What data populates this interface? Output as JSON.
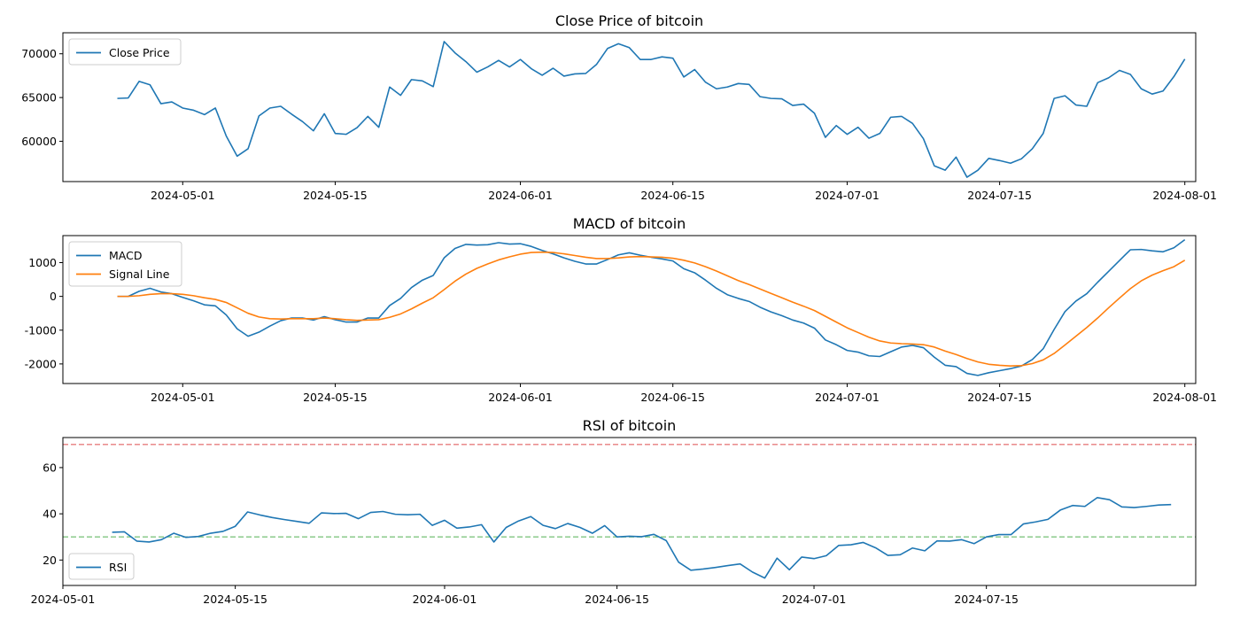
{
  "chart_data": [
    {
      "type": "line",
      "title": "Close Price of bitcoin",
      "xlabel": "",
      "ylabel": "",
      "x_start": "2024-04-25",
      "xlim": [
        "2024-04-20",
        "2024-08-02"
      ],
      "ylim": [
        55400,
        72400
      ],
      "x_ticks": [
        "2024-05-01",
        "2024-05-15",
        "2024-06-01",
        "2024-06-15",
        "2024-07-01",
        "2024-07-15",
        "2024-08-01"
      ],
      "y_ticks": [
        60000,
        65000,
        70000
      ],
      "grid": false,
      "legend": "upper left",
      "series": [
        {
          "name": "Close Price",
          "color": "#1f77b4",
          "values": [
            64900,
            64950,
            66850,
            66450,
            64300,
            64500,
            63800,
            63550,
            63050,
            63800,
            60600,
            58300,
            59150,
            62900,
            63800,
            64000,
            63100,
            62250,
            61200,
            63150,
            60900,
            60800,
            61550,
            62850,
            61600,
            66200,
            65250,
            67050,
            66900,
            66250,
            71400,
            70100,
            69100,
            67900,
            68500,
            69250,
            68500,
            69350,
            68300,
            67550,
            68350,
            67450,
            67700,
            67750,
            68800,
            70600,
            71150,
            70700,
            69350,
            69350,
            69650,
            69500,
            67350,
            68200,
            66750,
            66000,
            66200,
            66600,
            66500,
            65100,
            64900,
            64850,
            64100,
            64250,
            63200,
            60450,
            61800,
            60800,
            61600,
            60350,
            60900,
            62750,
            62850,
            62050,
            60300,
            57200,
            56700,
            58200,
            55900,
            56700,
            58050,
            57800,
            57500,
            58000,
            59150,
            60900,
            64900,
            65200,
            64150,
            64000,
            66700,
            67250,
            68100,
            67650,
            66000,
            65400,
            65750,
            67400,
            69400
          ]
        }
      ]
    },
    {
      "type": "line",
      "title": "MACD of bitcoin",
      "xlabel": "",
      "ylabel": "",
      "x_start": "2024-04-25",
      "xlim": [
        "2024-04-20",
        "2024-08-02"
      ],
      "ylim": [
        -2580,
        1800
      ],
      "x_ticks": [
        "2024-05-01",
        "2024-05-15",
        "2024-06-01",
        "2024-06-15",
        "2024-07-01",
        "2024-07-15",
        "2024-08-01"
      ],
      "y_ticks": [
        -2000,
        -1000,
        0,
        1000
      ],
      "grid": false,
      "legend": "upper left",
      "series": [
        {
          "name": "MACD",
          "color": "#1f77b4",
          "values": [
            0,
            0,
            150,
            240,
            130,
            80,
            -30,
            -130,
            -250,
            -280,
            -550,
            -960,
            -1180,
            -1060,
            -880,
            -720,
            -640,
            -640,
            -700,
            -600,
            -690,
            -760,
            -760,
            -640,
            -640,
            -270,
            -60,
            260,
            480,
            620,
            1140,
            1420,
            1540,
            1520,
            1530,
            1590,
            1550,
            1560,
            1480,
            1360,
            1260,
            1140,
            1040,
            960,
            960,
            1090,
            1230,
            1290,
            1220,
            1160,
            1110,
            1050,
            820,
            700,
            480,
            240,
            50,
            -60,
            -150,
            -320,
            -460,
            -570,
            -700,
            -790,
            -940,
            -1290,
            -1430,
            -1600,
            -1650,
            -1760,
            -1780,
            -1640,
            -1500,
            -1450,
            -1520,
            -1800,
            -2040,
            -2080,
            -2280,
            -2340,
            -2260,
            -2200,
            -2140,
            -2060,
            -1870,
            -1550,
            -980,
            -450,
            -140,
            80,
            420,
            740,
            1060,
            1380,
            1390,
            1350,
            1320,
            1440,
            1680
          ]
        },
        {
          "name": "Signal Line",
          "color": "#ff7f0e",
          "values": [
            0,
            0,
            20,
            60,
            80,
            80,
            60,
            20,
            -40,
            -90,
            -180,
            -340,
            -500,
            -610,
            -660,
            -670,
            -660,
            -660,
            -660,
            -640,
            -660,
            -690,
            -710,
            -700,
            -690,
            -620,
            -520,
            -370,
            -200,
            -40,
            200,
            450,
            660,
            830,
            960,
            1080,
            1170,
            1250,
            1300,
            1310,
            1300,
            1260,
            1210,
            1160,
            1120,
            1120,
            1140,
            1170,
            1180,
            1170,
            1160,
            1130,
            1070,
            990,
            880,
            750,
            610,
            470,
            350,
            220,
            90,
            -40,
            -170,
            -290,
            -420,
            -590,
            -760,
            -930,
            -1070,
            -1210,
            -1320,
            -1380,
            -1400,
            -1410,
            -1430,
            -1500,
            -1620,
            -1720,
            -1840,
            -1940,
            -2010,
            -2040,
            -2060,
            -2050,
            -1990,
            -1880,
            -1690,
            -1440,
            -1180,
            -920,
            -640,
            -340,
            -50,
            230,
            460,
            630,
            760,
            880,
            1070
          ]
        }
      ]
    },
    {
      "type": "line",
      "title": "RSI of bitcoin",
      "xlabel": "",
      "ylabel": "",
      "x_start": "2024-05-05",
      "xlim": [
        "2024-05-01",
        "2024-08-01"
      ],
      "ylim": [
        9,
        73
      ],
      "x_ticks": [
        "2024-05-01",
        "2024-05-15",
        "2024-06-01",
        "2024-06-15",
        "2024-07-01",
        "2024-07-15"
      ],
      "y_ticks": [
        20,
        40,
        60
      ],
      "grid": false,
      "legend": "lower left",
      "reference_lines": [
        {
          "value": 70,
          "color": "#d62728",
          "style": "dashed"
        },
        {
          "value": 30,
          "color": "#2ca02c",
          "style": "dashed"
        }
      ],
      "series": [
        {
          "name": "RSI",
          "color": "#1f77b4",
          "values": [
            32,
            32.2,
            28.2,
            27.8,
            28.8,
            31.6,
            29.8,
            30.2,
            31.6,
            32.4,
            34.6,
            40.8,
            39.5,
            38.4,
            37.5,
            36.7,
            35.9,
            40.4,
            40.1,
            40.2,
            37.9,
            40.6,
            41,
            39.8,
            39.6,
            39.8,
            35,
            37.2,
            33.8,
            34.3,
            35.3,
            27.8,
            34.1,
            36.9,
            38.8,
            35,
            33.6,
            35.8,
            34.1,
            31.6,
            34.9,
            30,
            30.3,
            30.1,
            31.1,
            28.4,
            19.1,
            15.6,
            16.1,
            16.8,
            17.6,
            18.3,
            14.8,
            12.2,
            20.8,
            15.8,
            21.3,
            20.6,
            21.9,
            26.3,
            26.6,
            27.6,
            25.3,
            22,
            22.3,
            25.2,
            24,
            28.3,
            28.2,
            28.8,
            27.1,
            30,
            31,
            31,
            35.6,
            36.5,
            37.6,
            41.6,
            43.6,
            43.2,
            47,
            46.1,
            43,
            42.7,
            43.2,
            43.8,
            44
          ]
        }
      ]
    }
  ]
}
